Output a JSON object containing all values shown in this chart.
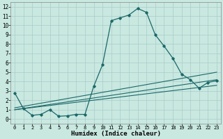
{
  "xlabel": "Humidex (Indice chaleur)",
  "background_color": "#c8e8e0",
  "grid_color": "#aacaca",
  "line_color": "#1a6868",
  "xlim": [
    -0.5,
    23.5
  ],
  "ylim": [
    -0.5,
    12.5
  ],
  "x_ticks": [
    0,
    1,
    2,
    3,
    4,
    5,
    6,
    7,
    8,
    9,
    10,
    11,
    12,
    13,
    14,
    15,
    16,
    17,
    18,
    19,
    20,
    21,
    22,
    23
  ],
  "y_ticks": [
    0,
    1,
    2,
    3,
    4,
    5,
    6,
    7,
    8,
    9,
    10,
    11,
    12
  ],
  "main_x": [
    0,
    1,
    2,
    3,
    4,
    5,
    6,
    7,
    8,
    9,
    10,
    11,
    12,
    13,
    14,
    15,
    16,
    17,
    18,
    19,
    20,
    21,
    22,
    23
  ],
  "main_y": [
    2.8,
    1.1,
    0.4,
    0.5,
    1.0,
    0.3,
    0.35,
    0.5,
    0.5,
    3.5,
    5.8,
    10.5,
    10.8,
    11.1,
    11.8,
    11.4,
    9.0,
    7.8,
    6.5,
    4.8,
    4.2,
    3.3,
    3.9,
    4.1
  ],
  "trend_lines": [
    {
      "x": [
        0,
        23
      ],
      "y": [
        1.2,
        5.0
      ]
    },
    {
      "x": [
        0,
        23
      ],
      "y": [
        1.0,
        4.2
      ]
    },
    {
      "x": [
        0,
        23
      ],
      "y": [
        1.0,
        3.6
      ]
    }
  ]
}
